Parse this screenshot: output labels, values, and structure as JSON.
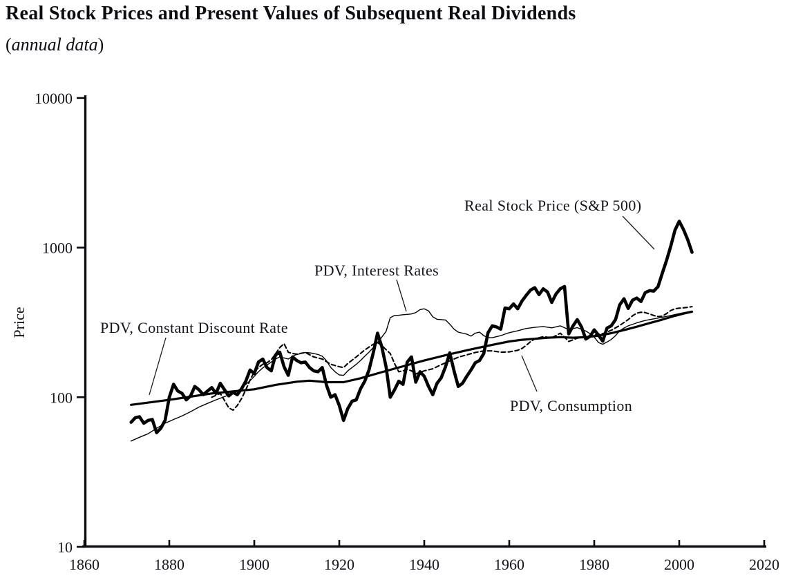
{
  "header": {
    "title": "Real Stock Prices and Present Values of Subsequent Real Dividends",
    "subtitle_open": "(",
    "subtitle_italic": "annual data",
    "subtitle_close": ")"
  },
  "chart_data": {
    "type": "line",
    "title": "Real Stock Prices and Present Values of Subsequent Real Dividends",
    "subtitle": "(annual data)",
    "xlabel": "",
    "ylabel": "Price",
    "grid": "off",
    "legend": "inline-annotations",
    "x_axis": {
      "min": 1860,
      "max": 2020,
      "ticks": [
        1860,
        1880,
        1900,
        1920,
        1940,
        1960,
        1980,
        2000,
        2020
      ]
    },
    "y_axis": {
      "scale": "log",
      "min": 10,
      "max": 10000,
      "ticks": [
        10,
        100,
        1000,
        10000
      ]
    },
    "line_color": "#000000",
    "annotations": [
      {
        "label": "Real Stock Price (S&P 500)"
      },
      {
        "label": "PDV, Interest Rates"
      },
      {
        "label": "PDV, Constant Discount Rate"
      },
      {
        "label": "PDV, Consumption"
      }
    ],
    "series": [
      {
        "name": "Real Stock Price (S&P 500)",
        "style": "thick-solid",
        "start_year": 1871,
        "values": [
          68,
          73,
          74,
          67,
          70,
          71,
          58,
          62,
          70,
          100,
          122,
          110,
          106,
          96,
          102,
          118,
          112,
          104,
          110,
          116,
          106,
          124,
          112,
          102,
          108,
          104,
          114,
          128,
          152,
          144,
          172,
          180,
          158,
          150,
          192,
          200,
          160,
          140,
          186,
          176,
          170,
          172,
          158,
          150,
          148,
          158,
          120,
          100,
          104,
          88,
          70,
          84,
          94,
          96,
          114,
          128,
          152,
          198,
          268,
          218,
          160,
          100,
          112,
          128,
          122,
          172,
          186,
          126,
          148,
          138,
          118,
          104,
          124,
          135,
          160,
          198,
          150,
          118,
          124,
          138,
          152,
          170,
          176,
          196,
          270,
          300,
          295,
          285,
          395,
          390,
          420,
          390,
          440,
          480,
          520,
          540,
          485,
          530,
          505,
          430,
          490,
          530,
          550,
          265,
          300,
          330,
          295,
          245,
          255,
          282,
          260,
          237,
          290,
          300,
          330,
          415,
          455,
          392,
          445,
          460,
          436,
          500,
          516,
          512,
          548,
          672,
          820,
          1020,
          1310,
          1500,
          1320,
          1130,
          930
        ]
      },
      {
        "name": "PDV, Constant Discount Rate",
        "style": "medium-solid-smooth",
        "points": [
          [
            1871,
            89
          ],
          [
            1880,
            96
          ],
          [
            1890,
            106
          ],
          [
            1900,
            113
          ],
          [
            1905,
            121
          ],
          [
            1910,
            127
          ],
          [
            1913,
            129
          ],
          [
            1917,
            126
          ],
          [
            1921,
            126
          ],
          [
            1925,
            134
          ],
          [
            1930,
            147
          ],
          [
            1935,
            161
          ],
          [
            1940,
            176
          ],
          [
            1945,
            191
          ],
          [
            1950,
            206
          ],
          [
            1955,
            221
          ],
          [
            1960,
            236
          ],
          [
            1963,
            242
          ],
          [
            1966,
            246
          ],
          [
            1969,
            250
          ],
          [
            1972,
            252
          ],
          [
            1975,
            250
          ],
          [
            1978,
            252
          ],
          [
            1981,
            258
          ],
          [
            1984,
            268
          ],
          [
            1987,
            281
          ],
          [
            1990,
            296
          ],
          [
            1993,
            313
          ],
          [
            1996,
            330
          ],
          [
            1999,
            350
          ],
          [
            2001,
            362
          ],
          [
            2003,
            373
          ]
        ]
      },
      {
        "name": "PDV, Interest Rates",
        "style": "thin-solid",
        "points": [
          [
            1871,
            51
          ],
          [
            1873,
            54
          ],
          [
            1875,
            57
          ],
          [
            1877,
            62
          ],
          [
            1879,
            67
          ],
          [
            1881,
            71
          ],
          [
            1883,
            75
          ],
          [
            1885,
            80
          ],
          [
            1887,
            86
          ],
          [
            1889,
            91
          ],
          [
            1891,
            96
          ],
          [
            1893,
            101
          ],
          [
            1895,
            106
          ],
          [
            1897,
            115
          ],
          [
            1899,
            129
          ],
          [
            1900,
            138
          ],
          [
            1901,
            148
          ],
          [
            1902,
            157
          ],
          [
            1903,
            164
          ],
          [
            1904,
            172
          ],
          [
            1905,
            180
          ],
          [
            1906,
            186
          ],
          [
            1907,
            183
          ],
          [
            1908,
            180
          ],
          [
            1909,
            188
          ],
          [
            1910,
            193
          ],
          [
            1911,
            196
          ],
          [
            1912,
            199
          ],
          [
            1913,
            198
          ],
          [
            1914,
            196
          ],
          [
            1915,
            193
          ],
          [
            1916,
            188
          ],
          [
            1917,
            175
          ],
          [
            1918,
            158
          ],
          [
            1919,
            148
          ],
          [
            1920,
            141
          ],
          [
            1921,
            140
          ],
          [
            1922,
            150
          ],
          [
            1923,
            158
          ],
          [
            1924,
            166
          ],
          [
            1925,
            176
          ],
          [
            1926,
            188
          ],
          [
            1927,
            200
          ],
          [
            1928,
            215
          ],
          [
            1929,
            232
          ],
          [
            1930,
            252
          ],
          [
            1931,
            275
          ],
          [
            1932,
            340
          ],
          [
            1933,
            352
          ],
          [
            1934,
            353
          ],
          [
            1935,
            356
          ],
          [
            1936,
            358
          ],
          [
            1937,
            360
          ],
          [
            1938,
            368
          ],
          [
            1939,
            385
          ],
          [
            1940,
            390
          ],
          [
            1941,
            378
          ],
          [
            1942,
            345
          ],
          [
            1943,
            332
          ],
          [
            1944,
            330
          ],
          [
            1945,
            328
          ],
          [
            1946,
            308
          ],
          [
            1947,
            285
          ],
          [
            1948,
            272
          ],
          [
            1949,
            268
          ],
          [
            1950,
            264
          ],
          [
            1951,
            256
          ],
          [
            1952,
            268
          ],
          [
            1953,
            272
          ],
          [
            1954,
            258
          ],
          [
            1955,
            250
          ],
          [
            1956,
            250
          ],
          [
            1957,
            254
          ],
          [
            1958,
            258
          ],
          [
            1959,
            264
          ],
          [
            1960,
            270
          ],
          [
            1962,
            278
          ],
          [
            1964,
            288
          ],
          [
            1966,
            293
          ],
          [
            1968,
            297
          ],
          [
            1970,
            291
          ],
          [
            1972,
            300
          ],
          [
            1974,
            283
          ],
          [
            1976,
            292
          ],
          [
            1978,
            277
          ],
          [
            1979,
            266
          ],
          [
            1980,
            252
          ],
          [
            1981,
            232
          ],
          [
            1982,
            226
          ],
          [
            1983,
            234
          ],
          [
            1984,
            243
          ],
          [
            1985,
            258
          ],
          [
            1986,
            278
          ],
          [
            1987,
            290
          ],
          [
            1988,
            300
          ],
          [
            1990,
            314
          ],
          [
            1992,
            326
          ],
          [
            1994,
            334
          ],
          [
            1996,
            342
          ],
          [
            1998,
            352
          ],
          [
            2000,
            362
          ],
          [
            2002,
            372
          ],
          [
            2003,
            377
          ]
        ]
      },
      {
        "name": "PDV, Consumption",
        "style": "dashed",
        "points": [
          [
            1890,
            100
          ],
          [
            1892,
            106
          ],
          [
            1893,
            95
          ],
          [
            1894,
            85
          ],
          [
            1895,
            82
          ],
          [
            1896,
            88
          ],
          [
            1897,
            98
          ],
          [
            1898,
            112
          ],
          [
            1899,
            130
          ],
          [
            1900,
            148
          ],
          [
            1901,
            158
          ],
          [
            1902,
            166
          ],
          [
            1903,
            170
          ],
          [
            1904,
            178
          ],
          [
            1905,
            195
          ],
          [
            1906,
            215
          ],
          [
            1907,
            228
          ],
          [
            1908,
            200
          ],
          [
            1909,
            196
          ],
          [
            1910,
            194
          ],
          [
            1912,
            199
          ],
          [
            1914,
            186
          ],
          [
            1916,
            180
          ],
          [
            1918,
            166
          ],
          [
            1920,
            160
          ],
          [
            1921,
            158
          ],
          [
            1922,
            168
          ],
          [
            1924,
            186
          ],
          [
            1926,
            207
          ],
          [
            1928,
            226
          ],
          [
            1929,
            232
          ],
          [
            1930,
            222
          ],
          [
            1931,
            208
          ],
          [
            1932,
            196
          ],
          [
            1933,
            168
          ],
          [
            1934,
            148
          ],
          [
            1935,
            150
          ],
          [
            1936,
            154
          ],
          [
            1937,
            150
          ],
          [
            1938,
            143
          ],
          [
            1939,
            147
          ],
          [
            1940,
            150
          ],
          [
            1942,
            155
          ],
          [
            1944,
            165
          ],
          [
            1946,
            175
          ],
          [
            1948,
            185
          ],
          [
            1950,
            192
          ],
          [
            1952,
            199
          ],
          [
            1954,
            204
          ],
          [
            1956,
            204
          ],
          [
            1958,
            200
          ],
          [
            1960,
            201
          ],
          [
            1962,
            206
          ],
          [
            1963,
            212
          ],
          [
            1964,
            222
          ],
          [
            1965,
            235
          ],
          [
            1966,
            246
          ],
          [
            1967,
            250
          ],
          [
            1968,
            254
          ],
          [
            1970,
            250
          ],
          [
            1971,
            258
          ],
          [
            1972,
            268
          ],
          [
            1973,
            252
          ],
          [
            1974,
            236
          ],
          [
            1976,
            248
          ],
          [
            1978,
            255
          ],
          [
            1980,
            260
          ],
          [
            1982,
            266
          ],
          [
            1984,
            280
          ],
          [
            1986,
            302
          ],
          [
            1988,
            330
          ],
          [
            1989,
            350
          ],
          [
            1990,
            365
          ],
          [
            1991,
            370
          ],
          [
            1992,
            368
          ],
          [
            1993,
            360
          ],
          [
            1994,
            352
          ],
          [
            1995,
            346
          ],
          [
            1996,
            348
          ],
          [
            1997,
            362
          ],
          [
            1998,
            380
          ],
          [
            1999,
            390
          ],
          [
            2000,
            394
          ],
          [
            2001,
            396
          ],
          [
            2002,
            399
          ],
          [
            2003,
            403
          ]
        ]
      }
    ]
  }
}
